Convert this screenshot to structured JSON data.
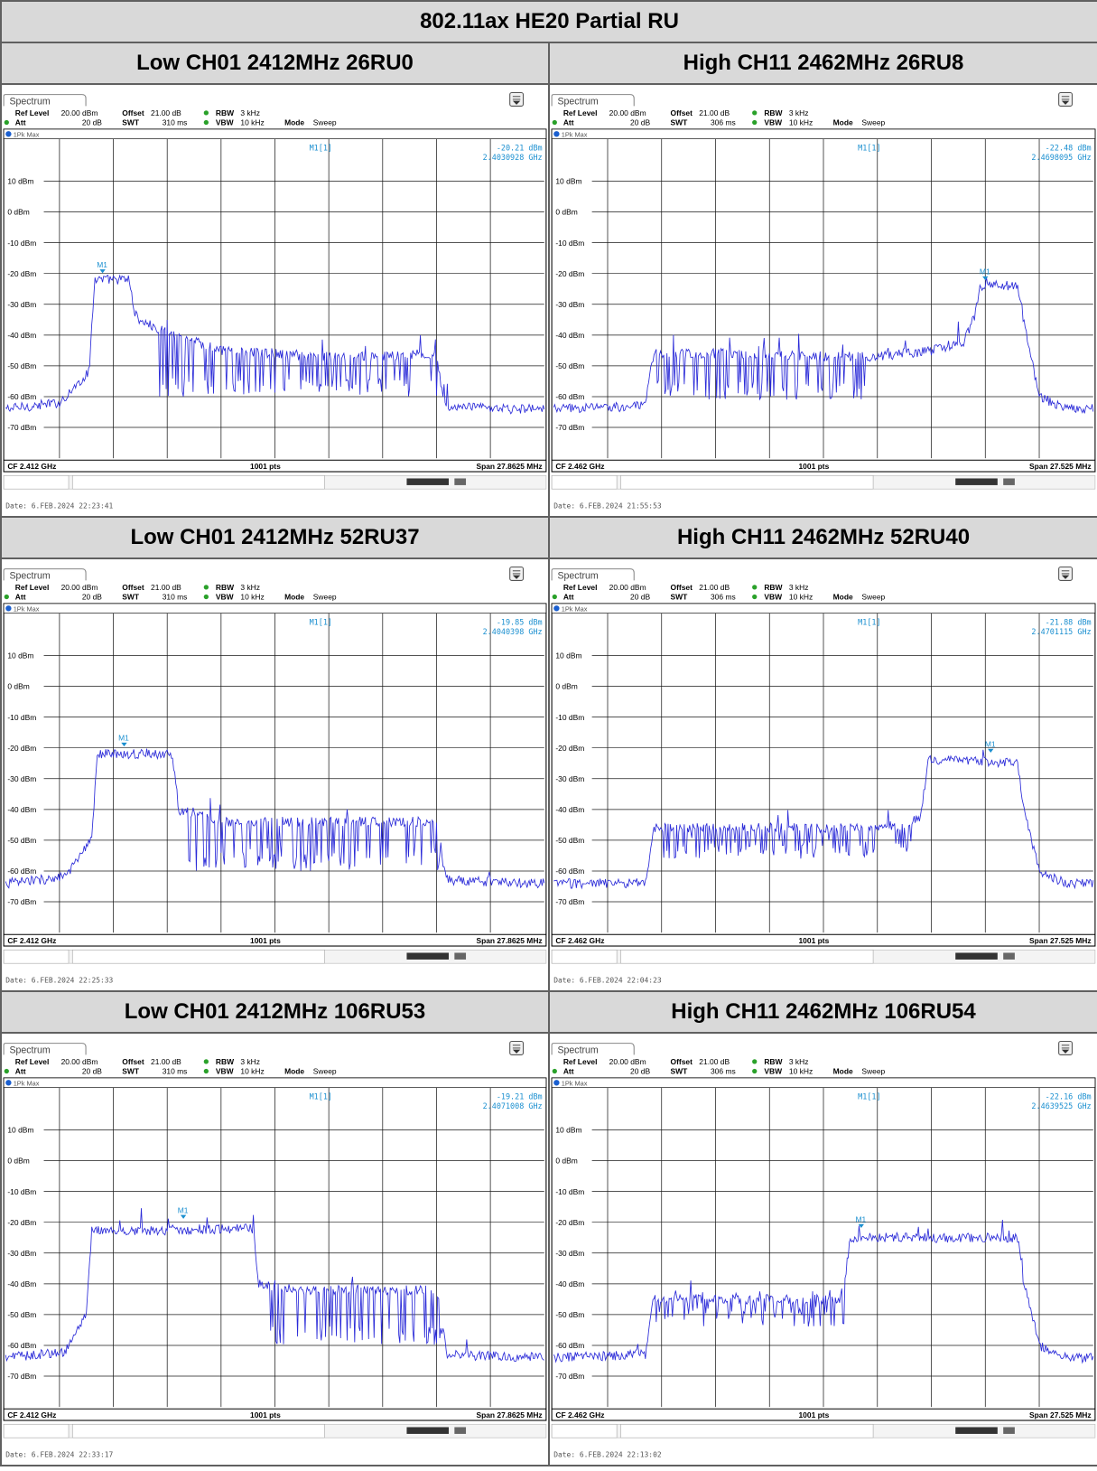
{
  "report": {
    "title": "802.11ax HE20 Partial RU"
  },
  "headers": [
    "Low CH01 2412MHz 26RU0",
    "High CH11 2462MHz 26RU8",
    "Low CH01 2412MHz 52RU37",
    "High CH11 2462MHz 52RU40",
    "Low CH01 2412MHz 106RU53",
    "High CH11 2462MHz 106RU54"
  ],
  "common": {
    "tab_label": "Spectrum",
    "ref_level_label": "Ref Level",
    "ref_level": "20.00 dBm",
    "offset_label": "Offset",
    "offset": "21.00 dB",
    "rbw_label": "RBW",
    "rbw": "3 kHz",
    "att_label": "Att",
    "att": "20 dB",
    "swt_label": "SWT",
    "vbw_label": "VBW",
    "vbw": "10 kHz",
    "mode_label": "Mode",
    "mode": "Sweep",
    "trace_label": "1Pk Max",
    "pts": "1001 pts",
    "marker_label": "M1[1]",
    "marker_tag": "M1",
    "grid_labels": [
      "10 dBm",
      "0 dBm",
      "-10 dBm",
      "-20 dBm",
      "-30 dBm",
      "-40 dBm",
      "-50 dBm",
      "-60 dBm",
      "-70 dBm"
    ]
  },
  "colors": {
    "trace": "#2a2ad8",
    "marker": "#1a8fd0",
    "grid": "#1a1a1a",
    "header_bg": "#d9d9d9"
  },
  "chart_data": [
    {
      "type": "line",
      "title": "Low CH01 2412MHz 26RU0",
      "ylim": [
        -80,
        20
      ],
      "swt": "310 ms",
      "cf": "CF 2.412 GHz",
      "span": "Span 27.8625 MHz",
      "marker_value": "-20.21 dBm",
      "marker_freq": "2.4030928 GHz",
      "date": "Date: 6.FEB.2024  22:23:41",
      "marker_x": 0.18,
      "marker_y": -20.21,
      "profile": [
        [
          0,
          -64
        ],
        [
          0.1,
          -62
        ],
        [
          0.155,
          -52
        ],
        [
          0.165,
          -22
        ],
        [
          0.23,
          -22
        ],
        [
          0.24,
          -34
        ],
        [
          0.28,
          -38
        ],
        [
          0.35,
          -42
        ],
        [
          0.4,
          -45
        ],
        [
          0.5,
          -46
        ],
        [
          0.55,
          -47
        ],
        [
          0.6,
          -47
        ],
        [
          0.7,
          -47
        ],
        [
          0.8,
          -46
        ],
        [
          0.815,
          -63
        ],
        [
          0.9,
          -64
        ],
        [
          1,
          -64
        ]
      ],
      "spikes": [
        [
          0.28,
          0.82,
          -60
        ]
      ]
    },
    {
      "type": "line",
      "title": "High CH11 2462MHz 26RU8",
      "ylim": [
        -80,
        20
      ],
      "swt": "306 ms",
      "cf": "CF 2.462 GHz",
      "span": "Span 27.525 MHz",
      "marker_value": "-22.48 dBm",
      "marker_freq": "2.4698095 GHz",
      "date": "Date: 6.FEB.2024  21:55:53",
      "marker_x": 0.8,
      "marker_y": -22.48,
      "profile": [
        [
          0,
          -64
        ],
        [
          0.17,
          -63
        ],
        [
          0.185,
          -46
        ],
        [
          0.3,
          -46
        ],
        [
          0.4,
          -46
        ],
        [
          0.5,
          -47
        ],
        [
          0.6,
          -47
        ],
        [
          0.7,
          -45
        ],
        [
          0.76,
          -42
        ],
        [
          0.78,
          -34
        ],
        [
          0.79,
          -24
        ],
        [
          0.86,
          -24
        ],
        [
          0.87,
          -34
        ],
        [
          0.9,
          -60
        ],
        [
          0.95,
          -64
        ],
        [
          1,
          -64
        ]
      ],
      "spikes": [
        [
          0.19,
          0.58,
          -61
        ]
      ]
    },
    {
      "type": "line",
      "title": "Low CH01 2412MHz 52RU37",
      "ylim": [
        -80,
        20
      ],
      "swt": "310 ms",
      "cf": "CF 2.412 GHz",
      "span": "Span 27.8625 MHz",
      "marker_value": "-19.85 dBm",
      "marker_freq": "2.4040398 GHz",
      "date": "Date: 6.FEB.2024  22:25:33",
      "marker_x": 0.22,
      "marker_y": -19.85,
      "profile": [
        [
          0,
          -64
        ],
        [
          0.11,
          -62
        ],
        [
          0.16,
          -50
        ],
        [
          0.17,
          -22
        ],
        [
          0.31,
          -22
        ],
        [
          0.32,
          -40
        ],
        [
          0.4,
          -44
        ],
        [
          0.8,
          -44
        ],
        [
          0.82,
          -63
        ],
        [
          1,
          -64
        ]
      ],
      "spikes": [
        [
          0.34,
          0.82,
          -60
        ]
      ]
    },
    {
      "type": "line",
      "title": "High CH11 2462MHz 52RU40",
      "ylim": [
        -80,
        20
      ],
      "swt": "306 ms",
      "cf": "CF 2.462 GHz",
      "span": "Span 27.525 MHz",
      "marker_value": "-21.88 dBm",
      "marker_freq": "2.4701115 GHz",
      "date": "Date: 6.FEB.2024  22:04:23",
      "marker_x": 0.81,
      "marker_y": -21.88,
      "profile": [
        [
          0,
          -64
        ],
        [
          0.17,
          -64
        ],
        [
          0.185,
          -46
        ],
        [
          0.65,
          -46
        ],
        [
          0.68,
          -42
        ],
        [
          0.695,
          -24
        ],
        [
          0.86,
          -25
        ],
        [
          0.87,
          -38
        ],
        [
          0.9,
          -60
        ],
        [
          0.95,
          -64
        ],
        [
          1,
          -64
        ]
      ],
      "spikes": [
        [
          0.19,
          0.67,
          -56
        ]
      ]
    },
    {
      "type": "line",
      "title": "Low CH01 2412MHz 106RU53",
      "ylim": [
        -80,
        20
      ],
      "swt": "310 ms",
      "cf": "CF 2.412 GHz",
      "span": "Span 27.8625 MHz",
      "marker_value": "-19.21 dBm",
      "marker_freq": "2.4071008 GHz",
      "date": "Date: 6.FEB.2024  22:33:17",
      "marker_x": 0.33,
      "marker_y": -19.21,
      "profile": [
        [
          0,
          -64
        ],
        [
          0.11,
          -62
        ],
        [
          0.15,
          -50
        ],
        [
          0.16,
          -23
        ],
        [
          0.46,
          -22
        ],
        [
          0.47,
          -40
        ],
        [
          0.55,
          -42
        ],
        [
          0.8,
          -42
        ],
        [
          0.82,
          -63
        ],
        [
          1,
          -64
        ]
      ],
      "spikes": [
        [
          0.48,
          0.81,
          -60
        ]
      ]
    },
    {
      "type": "line",
      "title": "High CH11 2462MHz 106RU54",
      "ylim": [
        -80,
        20
      ],
      "swt": "306 ms",
      "cf": "CF 2.462 GHz",
      "span": "Span 27.525 MHz",
      "marker_value": "-22.16 dBm",
      "marker_freq": "2.4639525 GHz",
      "date": "Date: 6.FEB.2024  22:13:02",
      "marker_x": 0.57,
      "marker_y": -22.16,
      "profile": [
        [
          0,
          -64
        ],
        [
          0.17,
          -63
        ],
        [
          0.185,
          -45
        ],
        [
          0.53,
          -45
        ],
        [
          0.54,
          -38
        ],
        [
          0.55,
          -25
        ],
        [
          0.86,
          -25
        ],
        [
          0.87,
          -38
        ],
        [
          0.9,
          -60
        ],
        [
          0.95,
          -64
        ],
        [
          1,
          -64
        ]
      ],
      "spikes": [
        [
          0.19,
          0.54,
          -54
        ]
      ]
    }
  ]
}
